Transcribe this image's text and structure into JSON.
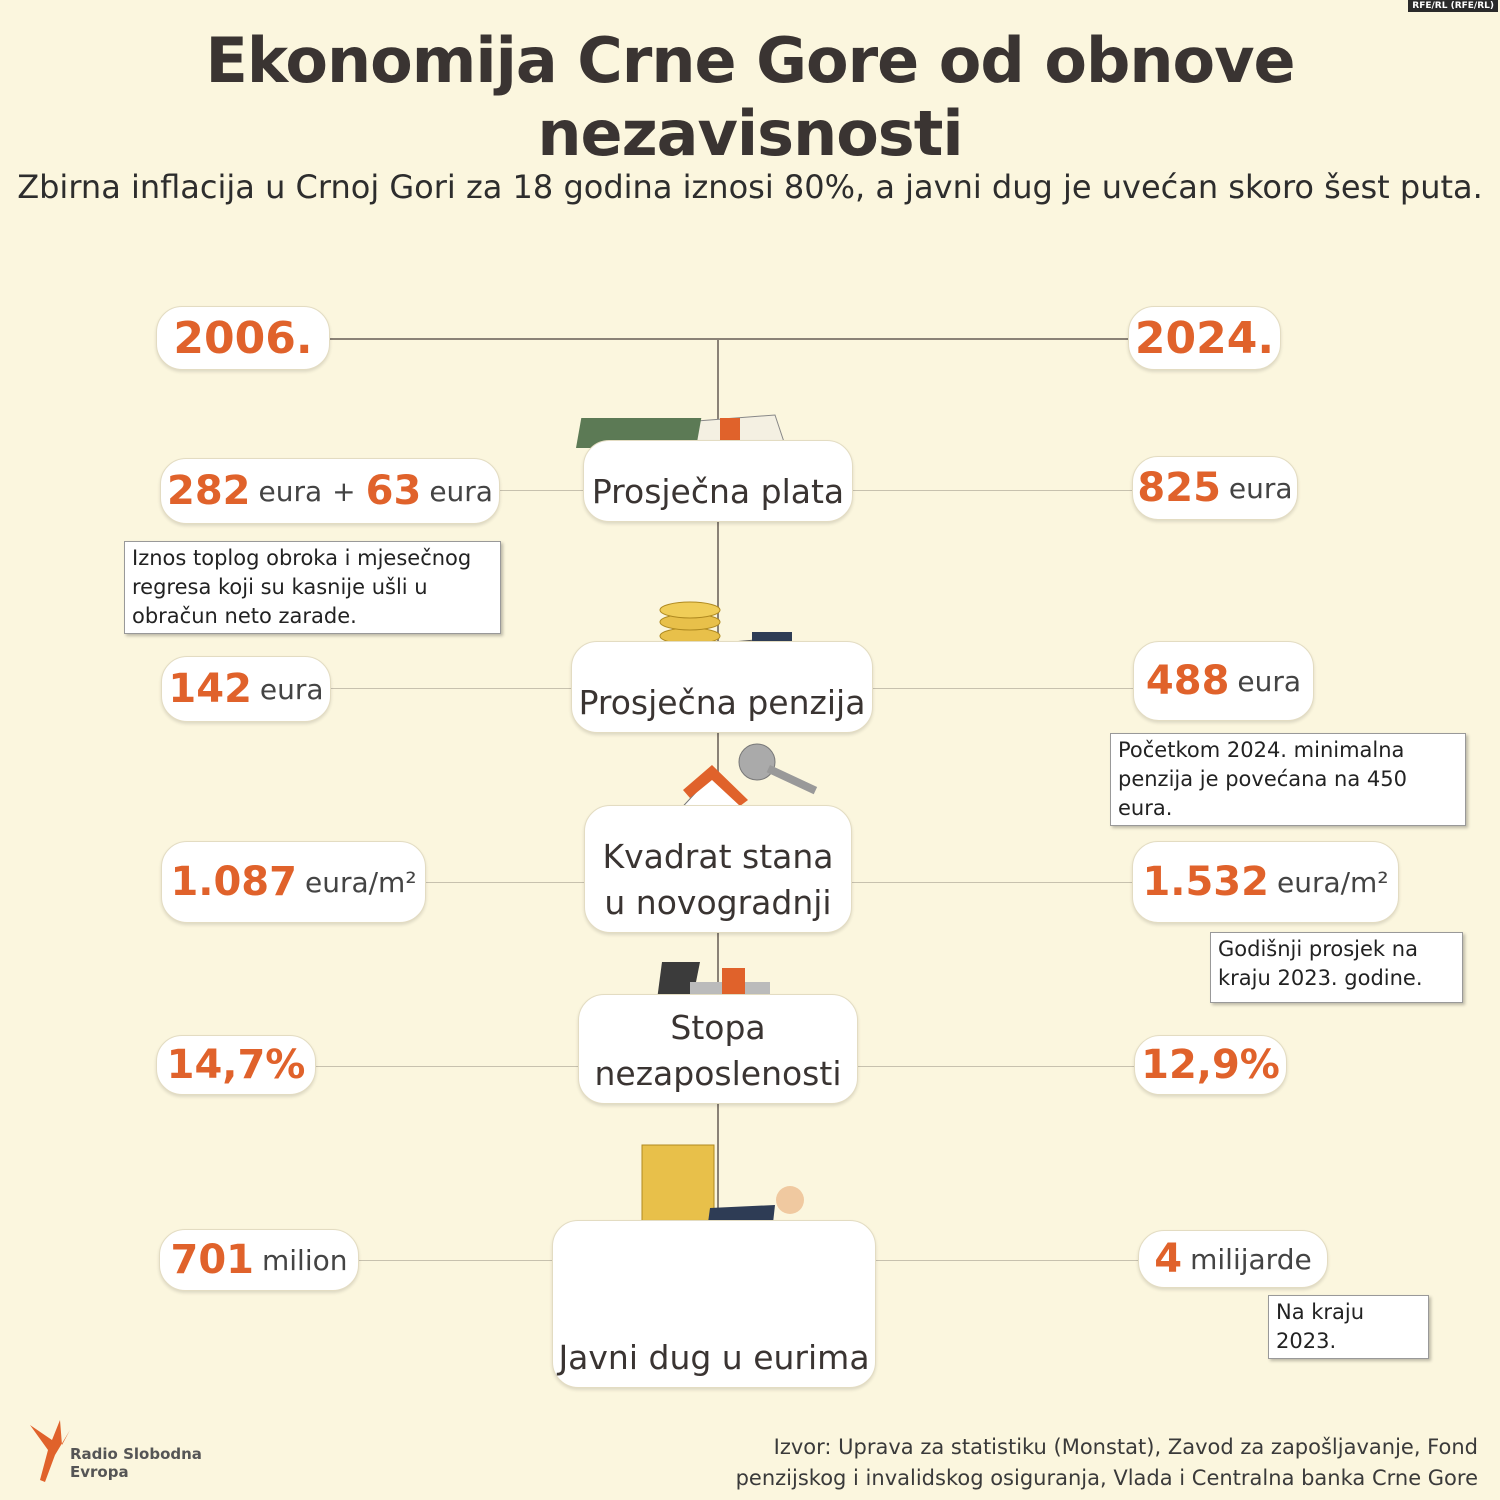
{
  "credit": "RFE/RL (RFE/RL)",
  "title": "Ekonomija Crne Gore od obnove nezavisnosti",
  "subtitle": "Zbirna inflacija u Crnoj Gori za 18 godina iznosi 80%, a javni dug je uvećan skoro šest puta.",
  "years": [
    "2006.",
    "2024."
  ],
  "rows": [
    {
      "label": [
        "Prosječna plata"
      ],
      "left": [
        {
          "value": "282",
          "unit": "eura"
        },
        {
          "value": "63",
          "unit": "eura"
        }
      ],
      "left_joiner": "+",
      "right": [
        {
          "value": "825",
          "unit": "eura"
        }
      ],
      "left_note": "Iznos toplog obroka i mjesečnog regresa koji su kasnije ušli u obračun neto zarade."
    },
    {
      "label": [
        "Prosječna penzija"
      ],
      "left": [
        {
          "value": "142",
          "unit": "eura"
        }
      ],
      "right": [
        {
          "value": "488",
          "unit": "eura"
        }
      ],
      "right_note": "Početkom 2024. minimalna penzija je povećana na 450 eura."
    },
    {
      "label": [
        "Kvadrat stana",
        "u novogradnji"
      ],
      "left": [
        {
          "value": "1.087",
          "unit": "eura/m²"
        }
      ],
      "right": [
        {
          "value": "1.532",
          "unit": "eura/m²"
        }
      ],
      "right_note": "Godišnji prosjek na kraju 2023. godine."
    },
    {
      "label": [
        "Stopa",
        "nezaposlenosti"
      ],
      "left": [
        {
          "value": "14,7%"
        }
      ],
      "right": [
        {
          "value": "12,9%"
        }
      ]
    },
    {
      "label": [
        "Javni dug u eurima"
      ],
      "left": [
        {
          "value": "701",
          "unit": "milion"
        }
      ],
      "right": [
        {
          "value": "4",
          "unit": "milijarde"
        }
      ],
      "right_note": "Na kraju 2023."
    }
  ],
  "source": [
    "Izvor: Uprava za statistiku (Monstat), Zavod za zapošljavanje, Fond",
    "penzijskog i invalidskog osiguranja, Vlada i Centralna banka Crne Gore"
  ],
  "logo": [
    "Radio Slobodna",
    "Evropa"
  ]
}
